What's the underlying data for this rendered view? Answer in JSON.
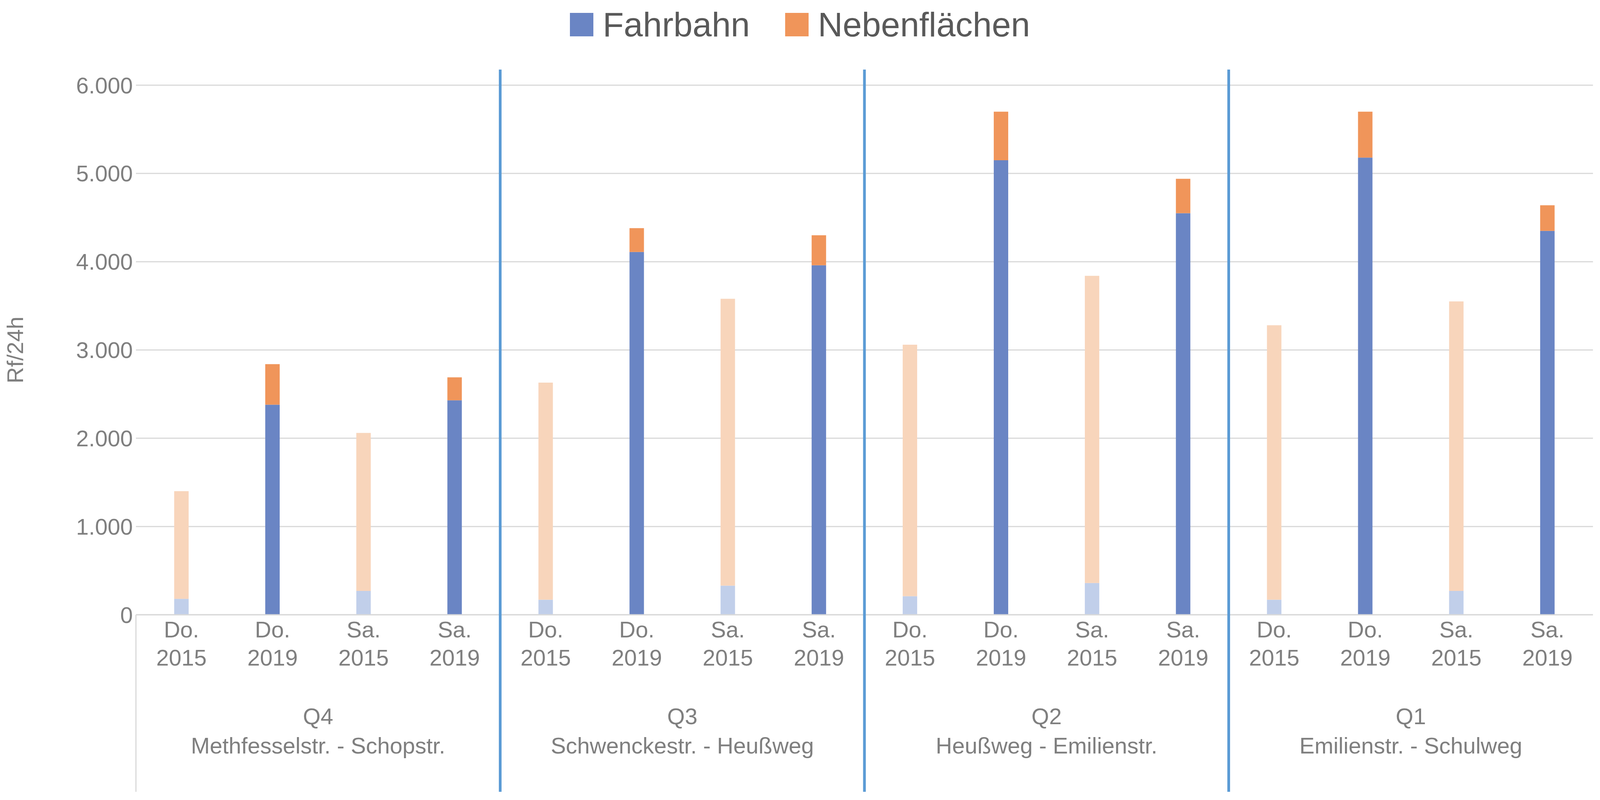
{
  "chart_data": {
    "type": "bar",
    "stacked": true,
    "grid": true,
    "legend": "top",
    "y_label": "Rf/24h",
    "categories": [
      "Do. 2015",
      "Do. 2019",
      "Sa. 2015",
      "Sa. 2019",
      "Do. 2015",
      "Do. 2019",
      "Sa. 2015",
      "Sa. 2019",
      "Do. 2015",
      "Do. 2019",
      "Sa. 2015",
      "Sa. 2019",
      "Do. 2015",
      "Do. 2019",
      "Sa. 2015",
      "Sa. 2019"
    ],
    "groups": [
      {
        "name": "Q4",
        "label": "Methfesselstr. - Schopstr."
      },
      {
        "name": "Q3",
        "label": "Schwenckestr. - Heußweg"
      },
      {
        "name": "Q2",
        "label": "Heußweg - Emilienstr."
      },
      {
        "name": "Q1",
        "label": "Emilienstr. - Schulweg"
      }
    ],
    "series": [
      {
        "name": "Fahrbahn",
        "color": "#6a85c4",
        "colors": [
          "#c1cfea",
          "#6a85c4",
          "#c1cfea",
          "#6a85c4",
          "#c1cfea",
          "#6a85c4",
          "#c1cfea",
          "#6a85c4",
          "#c1cfea",
          "#6a85c4",
          "#c1cfea",
          "#6a85c4",
          "#c1cfea",
          "#6a85c4",
          "#c1cfea",
          "#6a85c4"
        ],
        "values": [
          180,
          2380,
          270,
          2430,
          170,
          4110,
          330,
          3960,
          210,
          5150,
          360,
          4550,
          170,
          5180,
          270,
          4350
        ]
      },
      {
        "name": "Nebenflächen",
        "color": "#f0955a",
        "colors": [
          "#f8d5bb",
          "#f0955a",
          "#f8d5bb",
          "#f0955a",
          "#f8d5bb",
          "#f0955a",
          "#f8d5bb",
          "#f0955a",
          "#f8d5bb",
          "#f0955a",
          "#f8d5bb",
          "#f0955a",
          "#f8d5bb",
          "#f0955a",
          "#f8d5bb",
          "#f0955a"
        ],
        "values": [
          1220,
          460,
          1790,
          260,
          2460,
          270,
          3250,
          340,
          2850,
          550,
          3480,
          390,
          3110,
          520,
          3280,
          290
        ]
      }
    ],
    "ylim": [
      0,
      6000
    ],
    "yticks": [
      0,
      {
        "value": 1000,
        "label": "1.000"
      },
      {
        "value": 2000,
        "label": "2.000"
      },
      {
        "value": 3000,
        "label": "3.000"
      },
      {
        "value": 4000,
        "label": "4.000"
      },
      {
        "value": 5000,
        "label": "5.000"
      },
      {
        "value": 6000,
        "label": "6.000"
      }
    ]
  }
}
